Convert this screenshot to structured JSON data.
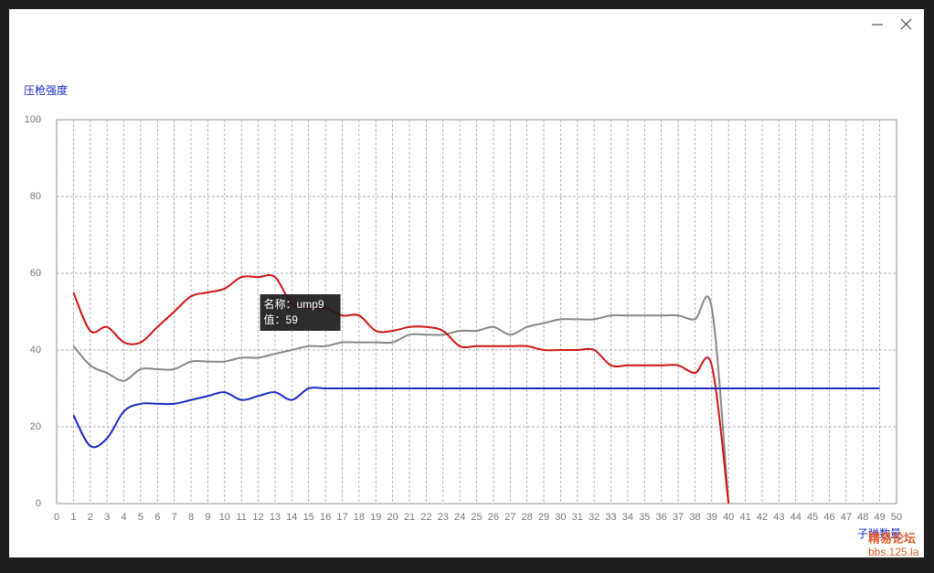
{
  "chart_data": {
    "type": "line",
    "y_label": "压枪强度",
    "x_label": "子弹数量",
    "x": [
      1,
      2,
      3,
      4,
      5,
      6,
      7,
      8,
      9,
      10,
      11,
      12,
      13,
      14,
      15,
      16,
      17,
      18,
      19,
      20,
      21,
      22,
      23,
      24,
      25,
      26,
      27,
      28,
      29,
      30,
      31,
      32,
      33,
      34,
      35,
      36,
      37,
      38,
      39,
      40,
      41,
      42,
      43,
      44,
      45,
      46,
      47,
      48,
      49
    ],
    "xlim": [
      0,
      50
    ],
    "xticks": [
      0,
      1,
      2,
      3,
      4,
      5,
      6,
      7,
      8,
      9,
      10,
      11,
      12,
      13,
      14,
      15,
      16,
      17,
      18,
      19,
      20,
      21,
      22,
      23,
      24,
      25,
      26,
      27,
      28,
      29,
      30,
      31,
      32,
      33,
      34,
      35,
      36,
      37,
      38,
      39,
      40,
      41,
      42,
      43,
      44,
      45,
      46,
      47,
      48,
      49,
      50
    ],
    "ylim": [
      0,
      100
    ],
    "yticks": [
      0,
      20,
      40,
      60,
      80,
      100
    ],
    "grid": true,
    "series": [
      {
        "color": "#888888",
        "values": [
          41,
          36,
          34,
          32,
          35,
          35,
          35,
          37,
          37,
          37,
          38,
          38,
          39,
          40,
          41,
          41,
          42,
          42,
          42,
          42,
          44,
          44,
          44,
          45,
          45,
          46,
          44,
          46,
          47,
          48,
          48,
          48,
          49,
          49,
          49,
          49,
          49,
          48,
          51,
          0,
          null,
          null,
          null,
          null,
          null,
          null,
          null,
          null,
          null
        ]
      },
      {
        "color": "#d01414",
        "values": [
          55,
          45,
          46,
          42,
          42,
          46,
          50,
          54,
          55,
          56,
          59,
          59,
          59,
          52,
          51,
          51,
          49,
          49,
          45,
          45,
          46,
          46,
          45,
          41,
          41,
          41,
          41,
          41,
          40,
          40,
          40,
          40,
          36,
          36,
          36,
          36,
          36,
          34,
          36,
          0,
          null,
          null,
          null,
          null,
          null,
          null,
          null,
          null,
          null
        ]
      },
      {
        "color": "#1a2cc4",
        "values": [
          23,
          15,
          17,
          24,
          26,
          26,
          26,
          27,
          28,
          29,
          27,
          28,
          29,
          27,
          30,
          30,
          30,
          30,
          30,
          30,
          30,
          30,
          30,
          30,
          30,
          30,
          30,
          30,
          30,
          30,
          30,
          30,
          30,
          30,
          30,
          30,
          30,
          30,
          30,
          30,
          30,
          30,
          30,
          30,
          30,
          30,
          30,
          30,
          30
        ]
      }
    ],
    "tooltip": {
      "x": 12,
      "lines": [
        "名称：ump9",
        "值：59"
      ]
    },
    "watermark": [
      "精易论坛",
      "bbs.125.la"
    ]
  }
}
